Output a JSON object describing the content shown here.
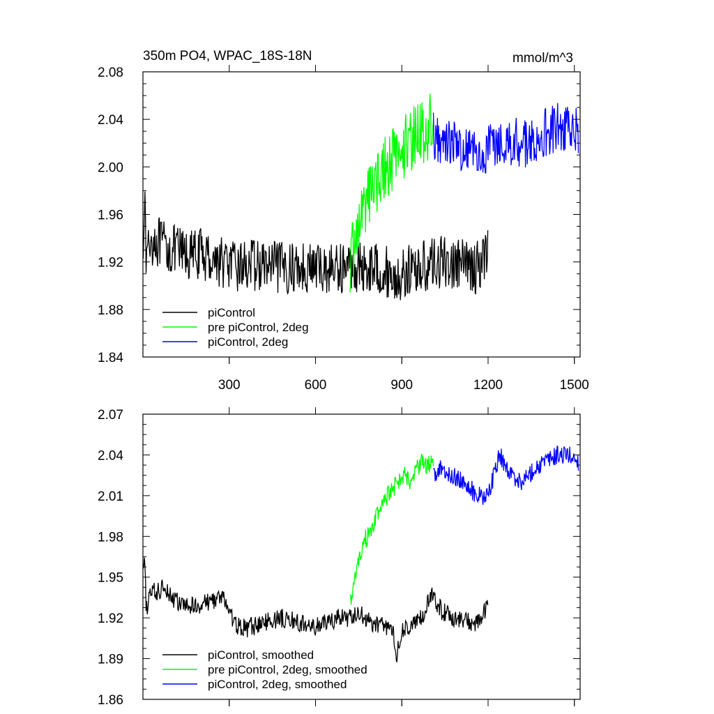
{
  "chart_data": [
    {
      "type": "line",
      "title": "350m PO4, WPAC_18S-18N",
      "units": "mmol/m^3",
      "xlim": [
        0,
        1520
      ],
      "ylim": [
        1.84,
        2.08
      ],
      "xticks": [
        300,
        600,
        900,
        1200,
        1500
      ],
      "xtick_labels": [
        "300",
        "600",
        "900",
        "1200",
        "1500"
      ],
      "yticks": [
        1.84,
        1.88,
        1.92,
        1.96,
        2.0,
        2.04,
        2.08
      ],
      "ytick_labels": [
        "1.84",
        "1.88",
        "1.92",
        "1.96",
        "2.00",
        "2.04",
        "2.08"
      ],
      "legend_position": "bottom-left",
      "series": [
        {
          "name": "piControl",
          "color": "#000000",
          "x": [
            1,
            5,
            10,
            20,
            40,
            60,
            80,
            100,
            130,
            160,
            200,
            240,
            280,
            320,
            360,
            400,
            440,
            480,
            520,
            560,
            600,
            640,
            680,
            720,
            760,
            800,
            840,
            880,
            920,
            960,
            1000,
            1040,
            1080,
            1120,
            1160,
            1200
          ],
          "values": [
            1.94,
            1.98,
            1.925,
            1.935,
            1.94,
            1.935,
            1.932,
            1.93,
            1.928,
            1.925,
            1.927,
            1.923,
            1.92,
            1.915,
            1.918,
            1.917,
            1.916,
            1.915,
            1.915,
            1.916,
            1.915,
            1.914,
            1.915,
            1.916,
            1.915,
            1.916,
            1.913,
            1.905,
            1.912,
            1.915,
            1.918,
            1.92,
            1.918,
            1.917,
            1.915,
            1.93
          ]
        },
        {
          "name": "pre piControl, 2deg",
          "color": "#00ff00",
          "x": [
            720,
            740,
            760,
            780,
            800,
            820,
            840,
            860,
            880,
            900,
            920,
            940,
            960,
            980,
            1000,
            1010
          ],
          "values": [
            1.92,
            1.94,
            1.96,
            1.975,
            1.985,
            1.99,
            2.0,
            2.005,
            2.01,
            2.015,
            2.02,
            2.025,
            2.03,
            2.03,
            2.035,
            2.03
          ]
        },
        {
          "name": "piControl, 2deg",
          "color": "#0000ff",
          "x": [
            1010,
            1040,
            1080,
            1120,
            1160,
            1200,
            1240,
            1280,
            1320,
            1360,
            1400,
            1440,
            1480,
            1515
          ],
          "values": [
            2.025,
            2.025,
            2.02,
            2.015,
            2.01,
            2.015,
            2.025,
            2.02,
            2.02,
            2.025,
            2.03,
            2.035,
            2.03,
            2.03
          ]
        }
      ]
    },
    {
      "type": "line",
      "xlim": [
        0,
        1520
      ],
      "ylim": [
        1.86,
        2.07
      ],
      "xticks": [
        300,
        600,
        900,
        1200,
        1500
      ],
      "yticks": [
        1.86,
        1.89,
        1.92,
        1.95,
        1.98,
        2.01,
        2.04,
        2.07
      ],
      "ytick_labels": [
        "1.86",
        "1.89",
        "1.92",
        "1.95",
        "1.98",
        "2.01",
        "2.04",
        "2.07"
      ],
      "legend_position": "bottom-left",
      "series": [
        {
          "name": "piControl, smoothed",
          "color": "#000000",
          "x": [
            1,
            5,
            12,
            25,
            50,
            75,
            100,
            130,
            160,
            200,
            240,
            280,
            320,
            360,
            400,
            440,
            480,
            520,
            560,
            600,
            640,
            680,
            720,
            760,
            800,
            840,
            870,
            880,
            900,
            940,
            980,
            1000,
            1040,
            1080,
            1120,
            1160,
            1200
          ],
          "values": [
            1.95,
            1.965,
            1.925,
            1.94,
            1.938,
            1.945,
            1.935,
            1.93,
            1.928,
            1.93,
            1.933,
            1.935,
            1.915,
            1.912,
            1.915,
            1.918,
            1.92,
            1.918,
            1.915,
            1.913,
            1.917,
            1.92,
            1.92,
            1.922,
            1.915,
            1.915,
            1.91,
            1.89,
            1.91,
            1.915,
            1.922,
            1.938,
            1.925,
            1.92,
            1.918,
            1.915,
            1.928
          ]
        },
        {
          "name": "pre piControl, 2deg, smoothed",
          "color": "#00ff00",
          "x": [
            720,
            735,
            750,
            770,
            790,
            810,
            830,
            850,
            870,
            890,
            910,
            930,
            950,
            970,
            990,
            1005,
            1010
          ],
          "values": [
            1.932,
            1.945,
            1.962,
            1.978,
            1.98,
            1.995,
            2.0,
            2.01,
            2.015,
            2.02,
            2.025,
            2.02,
            2.028,
            2.035,
            2.03,
            2.04,
            2.025
          ]
        },
        {
          "name": "piControl, 2deg, smoothed",
          "color": "#0000ff",
          "x": [
            1010,
            1040,
            1080,
            1120,
            1160,
            1200,
            1240,
            1280,
            1320,
            1360,
            1400,
            1440,
            1480,
            1515
          ],
          "values": [
            2.025,
            2.03,
            2.025,
            2.02,
            2.01,
            2.01,
            2.04,
            2.025,
            2.02,
            2.03,
            2.035,
            2.04,
            2.04,
            2.035
          ]
        }
      ]
    }
  ]
}
